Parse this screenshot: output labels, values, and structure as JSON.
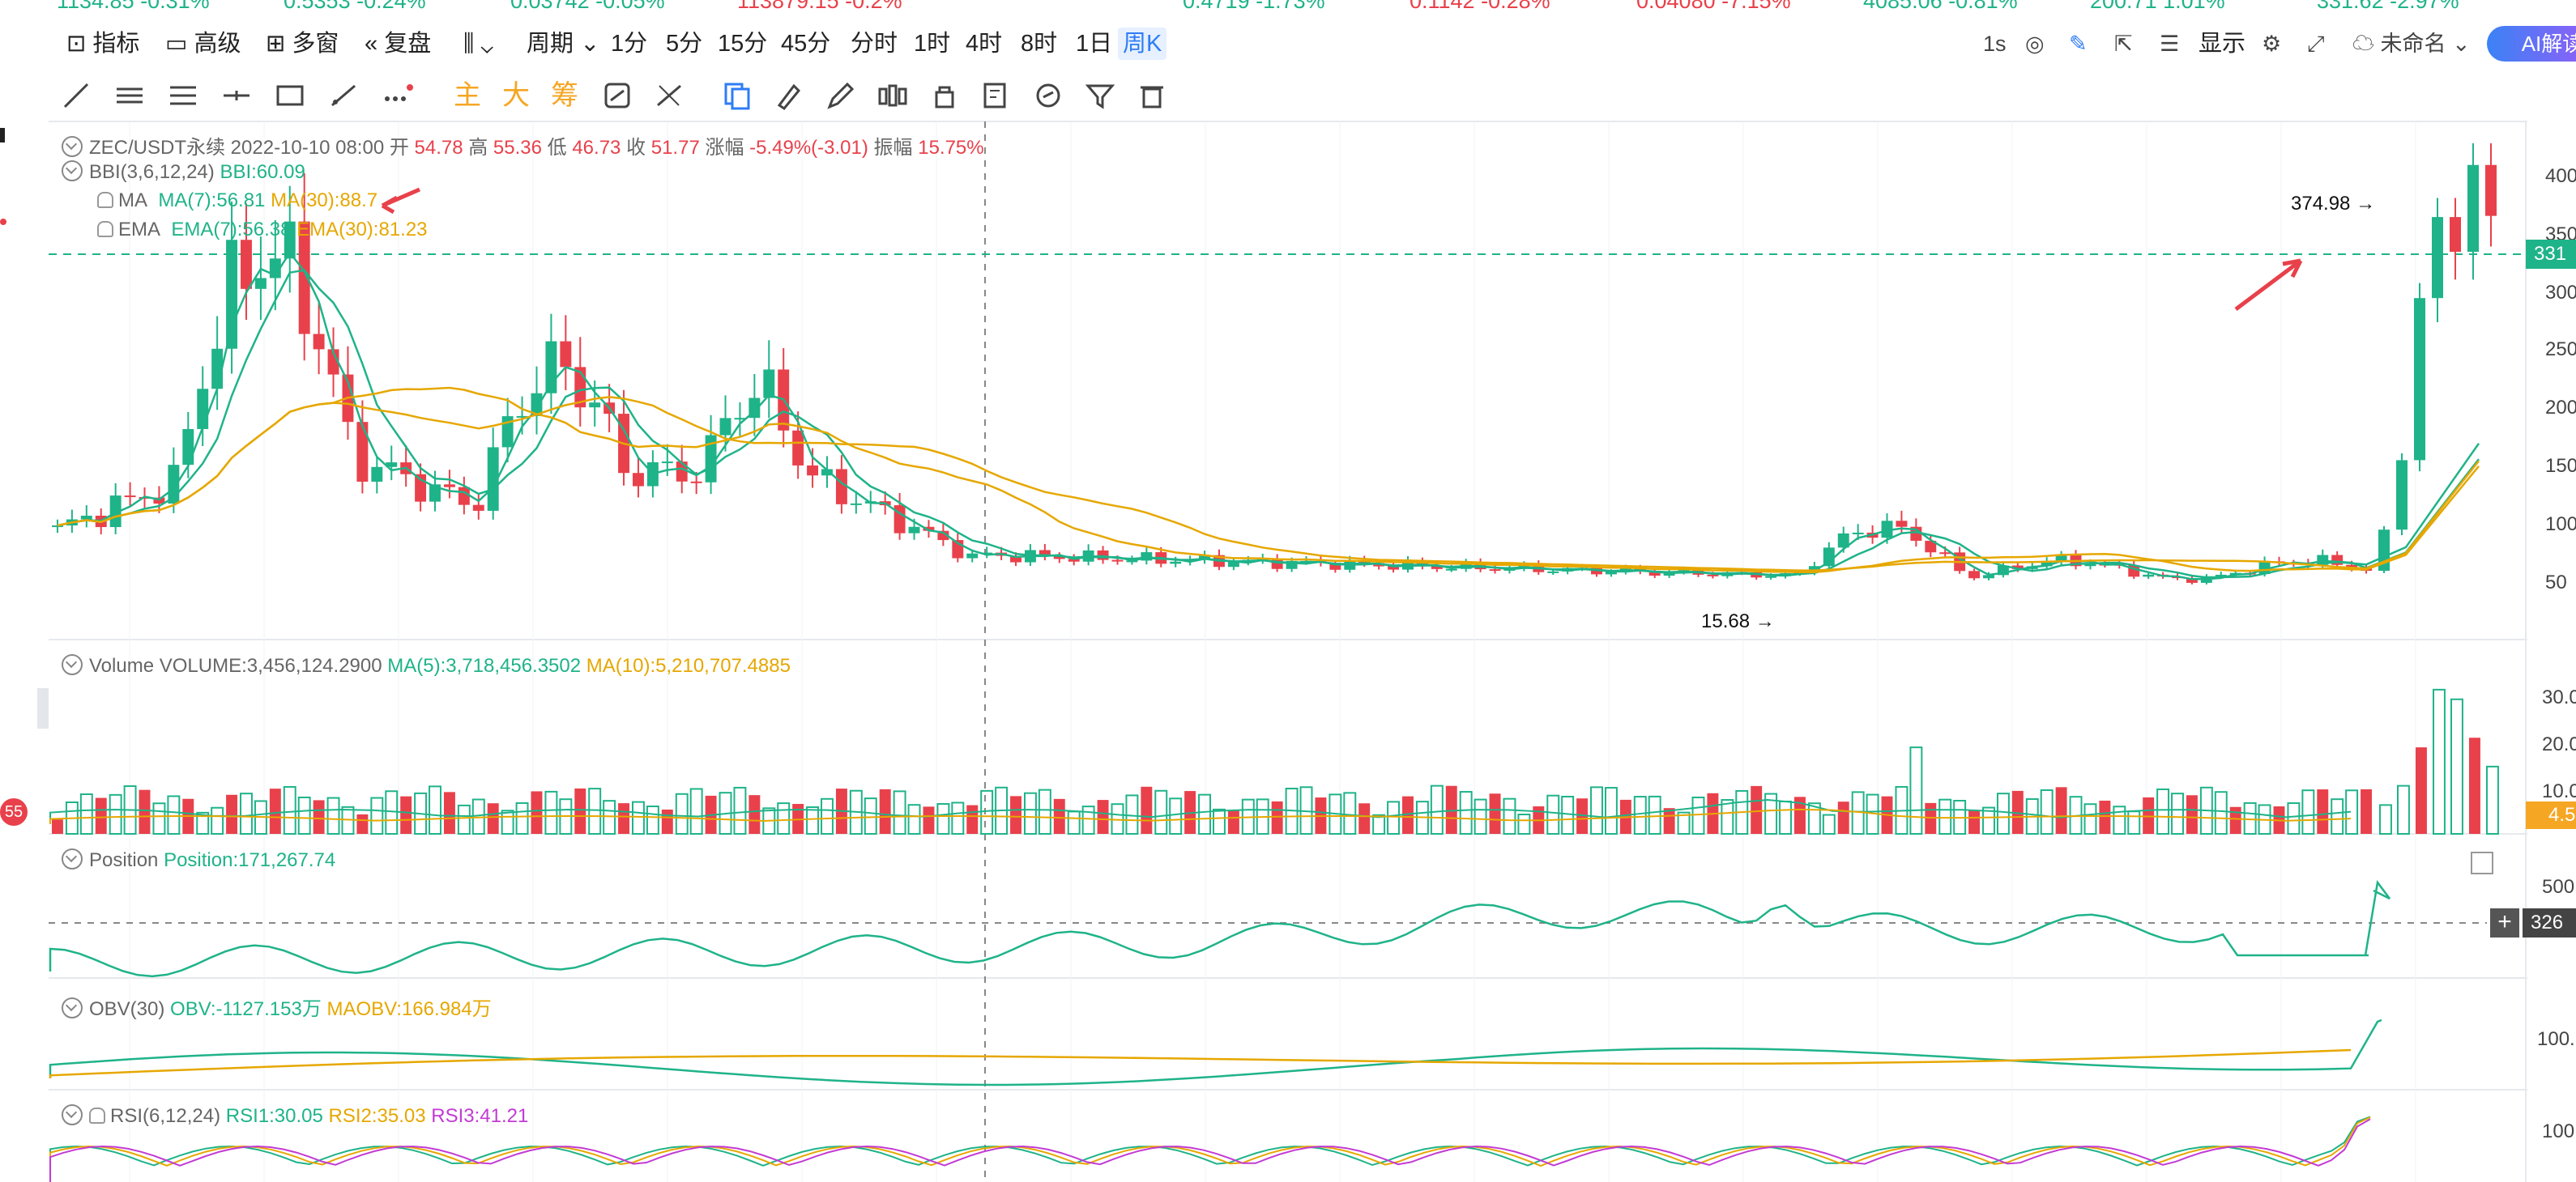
{
  "ticker": [
    {
      "text": "1134.85  -0.31%",
      "dir": "up"
    },
    {
      "text": "0.5353  -0.24%",
      "dir": "up"
    },
    {
      "text": "0.03742  -0.05%",
      "dir": "up"
    },
    {
      "text": "113879.15  -0.2%",
      "dir": "dn"
    },
    {
      "text": "0.4719  -1.73%",
      "dir": "up"
    },
    {
      "text": "0.1142  -0.28%",
      "dir": "dn"
    },
    {
      "text": "0.04080  -7.15%",
      "dir": "dn"
    },
    {
      "text": "4085.06  -0.81%",
      "dir": "up"
    },
    {
      "text": "200.71  1.01%",
      "dir": "up"
    },
    {
      "text": "331.62  -2.97%",
      "dir": "up"
    }
  ],
  "toolbar": {
    "indicators": "指标",
    "advanced": "高级",
    "multi_window": "多窗",
    "replay": "复盘",
    "period": "周期",
    "intervals": [
      "1分",
      "5分",
      "15分",
      "45分",
      "分时",
      "1时",
      "4时",
      "8时",
      "1日",
      "周K"
    ],
    "active_interval": "周K",
    "refresh": "1s",
    "display": "显示",
    "unnamed": "未命名",
    "ai": "AI解读"
  },
  "drawbar": {
    "main": "主",
    "big": "大",
    "chips": "筹"
  },
  "symbol_info": {
    "pair": "ZEC/USDT永续",
    "date": "2022-10-10 08:00",
    "open_label": "开",
    "open": "54.78",
    "high_label": "高",
    "high": "55.36",
    "low_label": "低",
    "low": "46.73",
    "close_label": "收",
    "close": "51.77",
    "change_label": "涨幅",
    "change": "-5.49%(-3.01)",
    "amp_label": "振幅",
    "amp": "15.75%"
  },
  "bbi": {
    "name": "BBI(3,6,12,24)",
    "value": "BBI:60.09"
  },
  "ma": {
    "name": "MA",
    "ma7": "MA(7):56.81",
    "ma30": "MA(30):88.7"
  },
  "ema": {
    "name": "EMA",
    "ema7": "EMA(7):56.38",
    "ema30": "EMA(30):81.23"
  },
  "price_axis": [
    "400",
    "350",
    "300",
    "250",
    "200",
    "150",
    "100",
    "50"
  ],
  "current_price_tag": "331",
  "high_marker": "374.98 →",
  "low_marker": "15.68 →",
  "volume": {
    "name": "Volume",
    "value": "VOLUME:3,456,124.2900",
    "ma5": "MA(5):3,718,456.3502",
    "ma10": "MA(10):5,210,707.4885",
    "axis": [
      "30.0",
      "20.0",
      "10.0"
    ],
    "tag": "4.5"
  },
  "position": {
    "name": "Position",
    "value": "Position:171,267.74",
    "axis": [
      "500"
    ],
    "tag": "326"
  },
  "obv": {
    "name": "OBV(30)",
    "obv": "OBV:-1127.153万",
    "maobv": "MAOBV:166.984万",
    "axis": [
      "100."
    ]
  },
  "rsi": {
    "name": "RSI(6,12,24)",
    "rsi1": "RSI1:30.05",
    "rsi2": "RSI2:35.03",
    "rsi3": "RSI3:41.21",
    "axis": [
      "100"
    ]
  },
  "left_badge": "55",
  "colors": {
    "up": "#1fb389",
    "down": "#e8414b",
    "ma30": "#e6a700",
    "accent": "#2e7cf6"
  }
}
